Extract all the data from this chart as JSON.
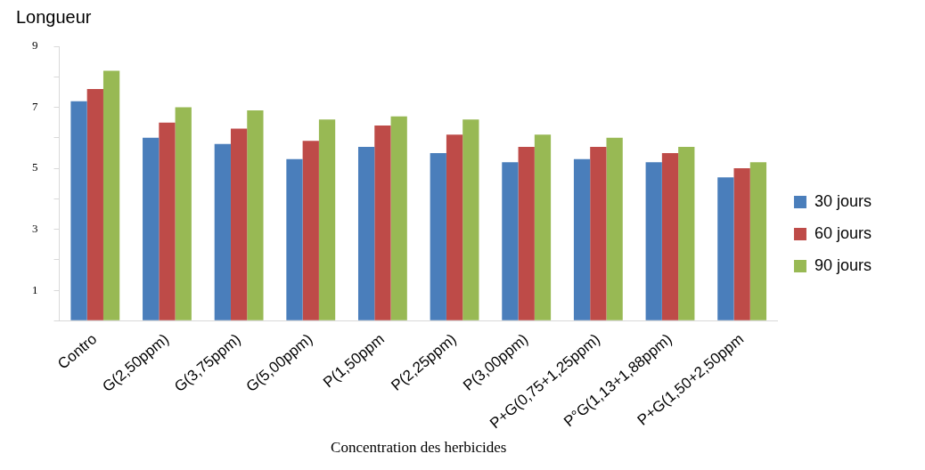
{
  "chart_data": {
    "type": "bar",
    "title": "Longueur",
    "xlabel": "Concentration des herbicides",
    "categories": [
      "Contro",
      "G(2,50ppm)",
      "G(3,75ppm)",
      "G(5,00ppm)",
      "P(1,50ppm",
      "P(2,25ppm)",
      "P(3,00ppm)",
      "P+G(0,75+1,25ppm)",
      "P°G(1,13+1,88ppm)",
      "P+G(1,50+2,50ppm"
    ],
    "series": [
      {
        "name": "30 jours",
        "color": "#4a7ebb",
        "values": [
          7.2,
          6.0,
          5.8,
          5.3,
          5.7,
          5.5,
          5.2,
          5.3,
          5.2,
          4.7
        ]
      },
      {
        "name": "60 jours",
        "color": "#be4b48",
        "values": [
          7.6,
          6.5,
          6.3,
          5.9,
          6.4,
          6.1,
          5.7,
          5.7,
          5.5,
          5.0
        ]
      },
      {
        "name": "90 jours",
        "color": "#98b954",
        "values": [
          8.2,
          7.0,
          6.9,
          6.6,
          6.7,
          6.6,
          6.1,
          6.0,
          5.7,
          5.2
        ]
      }
    ],
    "ylim": [
      0,
      9
    ],
    "yticks": [
      {
        "value": 0,
        "label": null
      },
      1,
      {
        "value": 2,
        "label": null
      },
      3,
      {
        "value": 4,
        "label": null
      },
      5,
      {
        "value": 6,
        "label": null
      },
      7,
      {
        "value": 8,
        "label": null
      },
      9
    ],
    "grid": false,
    "legend": "right"
  }
}
